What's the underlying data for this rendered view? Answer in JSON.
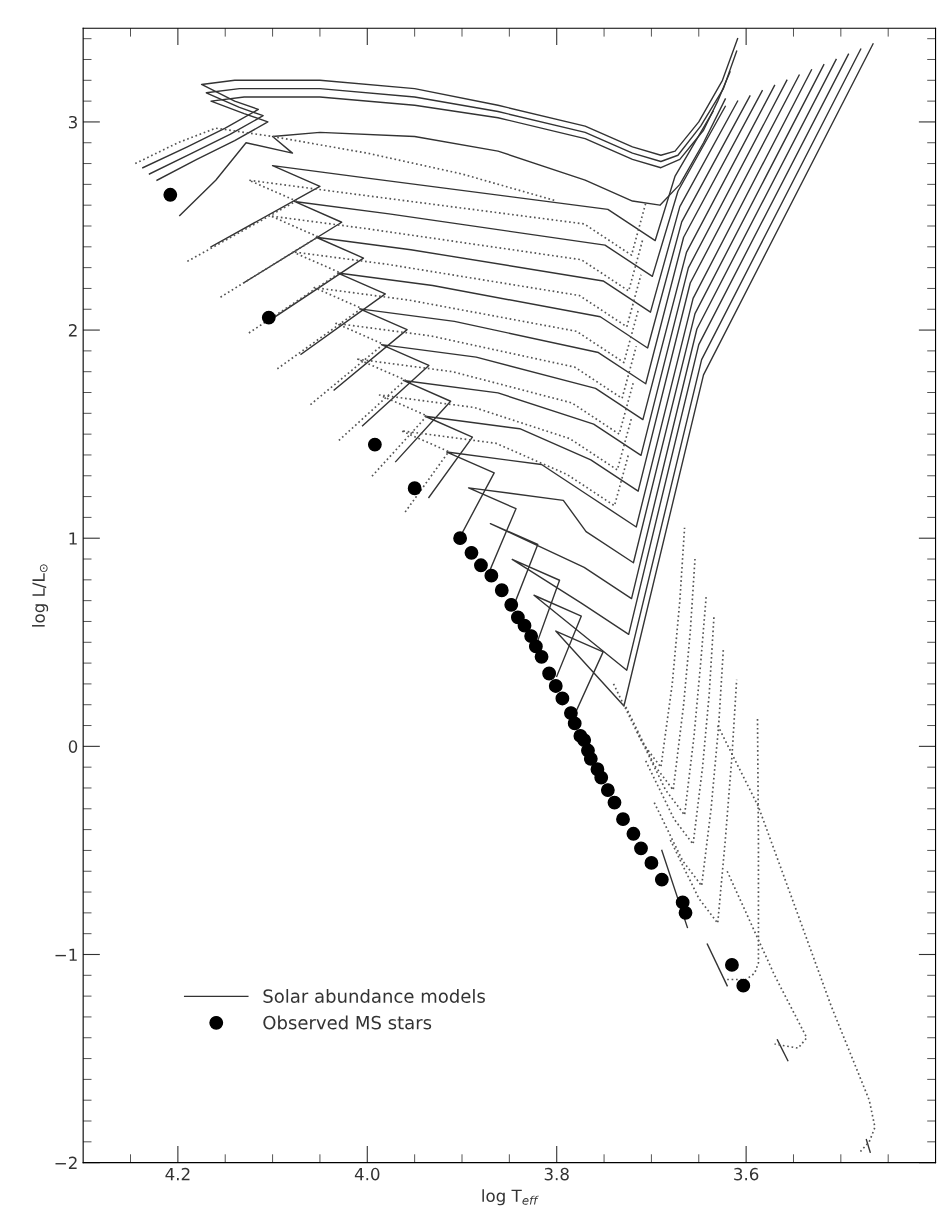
{
  "chart_data": {
    "type": "line",
    "xlabel": "log T$_{eff}$",
    "ylabel": "log L/L$_{⊙}$",
    "xlim": [
      4.3,
      3.4
    ],
    "ylim": [
      -2,
      3.45
    ],
    "xticks": [
      {
        "value": 4.25,
        "label": null
      },
      4.2,
      {
        "value": 4.15,
        "label": null
      },
      {
        "value": 4.1,
        "label": null
      },
      {
        "value": 4.05,
        "label": null
      },
      {
        "value": 4.0,
        "label": "4.0"
      },
      {
        "value": 3.95,
        "label": null
      },
      {
        "value": 3.9,
        "label": null
      },
      {
        "value": 3.85,
        "label": null
      },
      3.8,
      {
        "value": 3.75,
        "label": null
      },
      {
        "value": 3.7,
        "label": null
      },
      {
        "value": 3.65,
        "label": null
      },
      3.6,
      {
        "value": 3.55,
        "label": null
      },
      {
        "value": 3.5,
        "label": null
      },
      {
        "value": 3.45,
        "label": null
      }
    ],
    "yticks": [
      {
        "value": -2,
        "label": "−2"
      },
      {
        "value": -1.9,
        "label": null
      },
      {
        "value": -1.8,
        "label": null
      },
      {
        "value": -1.7,
        "label": null
      },
      {
        "value": -1.6,
        "label": null
      },
      {
        "value": -1.5,
        "label": null
      },
      {
        "value": -1.4,
        "label": null
      },
      {
        "value": -1.3,
        "label": null
      },
      {
        "value": -1.2,
        "label": null
      },
      {
        "value": -1.1,
        "label": null
      },
      {
        "value": -1,
        "label": "−1"
      },
      {
        "value": -0.9,
        "label": null
      },
      {
        "value": -0.8,
        "label": null
      },
      {
        "value": -0.7,
        "label": null
      },
      {
        "value": -0.6,
        "label": null
      },
      {
        "value": -0.5,
        "label": null
      },
      {
        "value": -0.4,
        "label": null
      },
      {
        "value": -0.3,
        "label": null
      },
      {
        "value": -0.2,
        "label": null
      },
      {
        "value": -0.1,
        "label": null
      },
      0,
      {
        "value": 0.1,
        "label": null
      },
      {
        "value": 0.2,
        "label": null
      },
      {
        "value": 0.3,
        "label": null
      },
      {
        "value": 0.4,
        "label": null
      },
      {
        "value": 0.5,
        "label": null
      },
      {
        "value": 0.6,
        "label": null
      },
      {
        "value": 0.7,
        "label": null
      },
      {
        "value": 0.8,
        "label": null
      },
      {
        "value": 0.9,
        "label": null
      },
      1,
      {
        "value": 1.1,
        "label": null
      },
      {
        "value": 1.2,
        "label": null
      },
      {
        "value": 1.3,
        "label": null
      },
      {
        "value": 1.4,
        "label": null
      },
      {
        "value": 1.5,
        "label": null
      },
      {
        "value": 1.6,
        "label": null
      },
      {
        "value": 1.7,
        "label": null
      },
      {
        "value": 1.8,
        "label": null
      },
      {
        "value": 1.9,
        "label": null
      },
      2,
      {
        "value": 2.1,
        "label": null
      },
      {
        "value": 2.2,
        "label": null
      },
      {
        "value": 2.3,
        "label": null
      },
      {
        "value": 2.4,
        "label": null
      },
      {
        "value": 2.5,
        "label": null
      },
      {
        "value": 2.6,
        "label": null
      },
      {
        "value": 2.7,
        "label": null
      },
      {
        "value": 2.8,
        "label": null
      },
      {
        "value": 2.9,
        "label": null
      },
      3,
      {
        "value": 3.1,
        "label": null
      },
      {
        "value": 3.2,
        "label": null
      },
      {
        "value": 3.3,
        "label": null
      },
      {
        "value": 3.4,
        "label": null
      }
    ],
    "grid": false,
    "legend": "bottom left",
    "series": [
      {
        "type": "line",
        "name": "Solar abundance models",
        "color": "#333333",
        "line_style": "solid",
        "x": [
          4.237,
          4.19,
          4.15,
          4.115,
          4.14,
          4.175,
          4.14,
          4.05,
          3.95,
          3.862,
          3.77,
          3.72,
          3.69,
          3.675,
          3.65,
          3.625,
          3.609
        ],
        "values": [
          2.78,
          2.88,
          2.97,
          3.06,
          3.1,
          3.18,
          3.2,
          3.2,
          3.16,
          3.08,
          2.98,
          2.88,
          2.84,
          2.86,
          3.0,
          3.2,
          3.4
        ]
      },
      {
        "type": "line",
        "color": "#333333",
        "line_style": "solid",
        "x": [
          4.23,
          4.185,
          4.145,
          4.11,
          4.135,
          4.17,
          4.135,
          4.05,
          3.95,
          3.862,
          3.77,
          3.72,
          3.69,
          3.672,
          3.648,
          3.624,
          3.61
        ],
        "values": [
          2.75,
          2.85,
          2.94,
          3.03,
          3.07,
          3.14,
          3.16,
          3.16,
          3.12,
          3.05,
          2.95,
          2.85,
          2.81,
          2.84,
          2.98,
          3.16,
          3.34
        ]
      },
      {
        "type": "line",
        "color": "#333333",
        "line_style": "solid",
        "x": [
          4.222,
          4.18,
          4.14,
          4.105,
          4.13,
          4.165,
          4.13,
          4.05,
          3.95,
          3.862,
          3.77,
          3.72,
          3.69,
          3.67,
          3.645,
          3.63,
          3.617
        ],
        "values": [
          2.72,
          2.82,
          2.91,
          3.0,
          3.04,
          3.1,
          3.12,
          3.12,
          3.08,
          3.02,
          2.92,
          2.82,
          2.78,
          2.82,
          2.96,
          3.1,
          3.24
        ]
      },
      {
        "type": "line",
        "color": "#333333",
        "line_style": "solid",
        "x": [
          4.198,
          4.16,
          4.128,
          4.079,
          4.1,
          4.05,
          3.95,
          3.862,
          3.77,
          3.72,
          3.691,
          3.67,
          3.645,
          3.622
        ],
        "values": [
          2.55,
          2.72,
          2.9,
          2.85,
          2.93,
          2.95,
          2.93,
          2.86,
          2.72,
          2.62,
          2.6,
          2.7,
          2.9,
          3.11
        ]
      },
      {
        "type": "line",
        "color": "#333333",
        "line_style": "solid",
        "x": [
          4.165,
          4.05,
          4.1,
          4.0,
          3.746,
          3.696,
          3.675,
          3.635
        ],
        "values": [
          2.4,
          2.69,
          2.79,
          2.73,
          2.58,
          2.43,
          2.74,
          3.05
        ]
      },
      {
        "type": "line",
        "color": "#333333",
        "line_style": "solid",
        "x": [
          4.13,
          4.027,
          4.077,
          3.977,
          3.749,
          3.699,
          3.672,
          3.622
        ],
        "values": [
          2.228,
          2.518,
          2.618,
          2.558,
          2.408,
          2.258,
          2.667,
          3.075
        ]
      },
      {
        "type": "line",
        "color": "#333333",
        "line_style": "solid",
        "x": [
          4.1,
          4.004,
          4.054,
          3.954,
          3.751,
          3.701,
          3.67,
          3.609
        ],
        "values": [
          2.056,
          2.346,
          2.446,
          2.386,
          2.236,
          2.086,
          2.593,
          3.1
        ]
      },
      {
        "type": "line",
        "color": "#333333",
        "line_style": "solid",
        "x": [
          4.07,
          3.981,
          4.031,
          3.931,
          3.754,
          3.704,
          3.668,
          3.596
        ],
        "values": [
          1.884,
          2.174,
          2.274,
          2.214,
          2.064,
          1.914,
          2.52,
          3.125
        ]
      },
      {
        "type": "line",
        "color": "#333333",
        "line_style": "solid",
        "x": [
          4.035,
          3.958,
          4.008,
          3.908,
          3.756,
          3.706,
          3.666,
          3.583
        ],
        "values": [
          1.712,
          2.002,
          2.102,
          2.042,
          1.892,
          1.742,
          2.446,
          3.15
        ]
      },
      {
        "type": "line",
        "color": "#333333",
        "line_style": "solid",
        "x": [
          4.005,
          3.935,
          3.985,
          3.885,
          3.759,
          3.709,
          3.663,
          3.57
        ],
        "values": [
          1.54,
          1.83,
          1.93,
          1.87,
          1.72,
          1.57,
          2.373,
          3.175
        ]
      },
      {
        "type": "line",
        "color": "#333333",
        "line_style": "solid",
        "x": [
          3.97,
          3.912,
          3.962,
          3.862,
          3.761,
          3.711,
          3.661,
          3.557
        ],
        "values": [
          1.368,
          1.658,
          1.758,
          1.698,
          1.548,
          1.398,
          2.299,
          3.2
        ]
      },
      {
        "type": "line",
        "color": "#333333",
        "line_style": "solid",
        "x": [
          3.935,
          3.889,
          3.939,
          3.839,
          3.764,
          3.714,
          3.659,
          3.544
        ],
        "values": [
          1.196,
          1.486,
          1.586,
          1.526,
          1.376,
          1.226,
          2.226,
          3.225
        ]
      },
      {
        "type": "line",
        "color": "#333333",
        "line_style": "solid",
        "x": [
          3.9,
          3.866,
          3.916,
          3.816,
          3.766,
          3.716,
          3.656,
          3.531
        ],
        "values": [
          1.024,
          1.314,
          1.414,
          1.354,
          1.204,
          1.054,
          2.152,
          3.25
        ]
      },
      {
        "type": "line",
        "color": "#333333",
        "line_style": "solid",
        "x": [
          3.87,
          3.843,
          3.893,
          3.793,
          3.769,
          3.719,
          3.654,
          3.518
        ],
        "values": [
          0.852,
          1.142,
          1.242,
          1.182,
          1.032,
          0.882,
          2.079,
          3.275
        ]
      },
      {
        "type": "line",
        "color": "#333333",
        "line_style": "solid",
        "x": [
          3.845,
          3.82,
          3.87,
          3.771,
          3.721,
          3.652,
          3.505
        ],
        "values": [
          0.68,
          0.97,
          1.07,
          0.86,
          0.71,
          2.005,
          3.3
        ]
      },
      {
        "type": "line",
        "color": "#333333",
        "line_style": "solid",
        "x": [
          3.82,
          3.797,
          3.847,
          3.774,
          3.724,
          3.65,
          3.492
        ],
        "values": [
          0.508,
          0.798,
          0.898,
          0.688,
          0.538,
          1.93,
          3.325
        ]
      },
      {
        "type": "line",
        "color": "#333333",
        "line_style": "solid",
        "x": [
          3.8,
          3.774,
          3.824,
          3.726,
          3.647,
          3.479
        ],
        "values": [
          0.336,
          0.626,
          0.726,
          0.366,
          1.858,
          3.35
        ]
      },
      {
        "type": "line",
        "color": "#333333",
        "line_style": "solid",
        "x": [
          3.78,
          3.751,
          3.801,
          3.729,
          3.645,
          3.466
        ],
        "values": [
          0.164,
          0.454,
          0.554,
          0.194,
          1.785,
          3.375
        ]
      },
      {
        "type": "line",
        "color": "#333333",
        "line_style": "solid",
        "x": [
          3.689,
          3.662
        ],
        "values": [
          -0.5,
          -0.87
        ]
      },
      {
        "type": "line",
        "color": "#333333",
        "line_style": "solid",
        "x": [
          3.641,
          3.62
        ],
        "values": [
          -0.95,
          -1.15
        ]
      },
      {
        "type": "line",
        "color": "#333333",
        "line_style": "solid",
        "x": [
          3.567,
          3.556
        ],
        "values": [
          -1.41,
          -1.51
        ]
      },
      {
        "type": "line",
        "color": "#333333",
        "line_style": "solid",
        "x": [
          3.473,
          3.469
        ],
        "values": [
          -1.89,
          -1.95
        ]
      },
      {
        "type": "line",
        "color": "#555555",
        "line_style": "dotted",
        "x": [
          4.245,
          4.2,
          4.16,
          4.1,
          4.0,
          3.9,
          3.8
        ],
        "values": [
          2.8,
          2.9,
          2.97,
          2.93,
          2.85,
          2.75,
          2.62
        ]
      },
      {
        "type": "line",
        "color": "#555555",
        "line_style": "dotted",
        "x": [
          4.19,
          4.075,
          4.125,
          4.025,
          3.771,
          3.721,
          3.706
        ],
        "values": [
          2.33,
          2.62,
          2.72,
          2.66,
          2.51,
          2.36,
          2.61
        ]
      },
      {
        "type": "line",
        "color": "#555555",
        "line_style": "dotted",
        "x": [
          4.155,
          4.052,
          4.102,
          4.002,
          3.774,
          3.724,
          3.709
        ],
        "values": [
          2.158,
          2.448,
          2.548,
          2.488,
          2.338,
          2.188,
          2.438
        ]
      },
      {
        "type": "line",
        "color": "#555555",
        "line_style": "dotted",
        "x": [
          4.125,
          4.029,
          4.079,
          3.979,
          3.776,
          3.726,
          3.711
        ],
        "values": [
          1.986,
          2.276,
          2.376,
          2.316,
          2.166,
          2.016,
          2.266
        ]
      },
      {
        "type": "line",
        "color": "#555555",
        "line_style": "dotted",
        "x": [
          4.095,
          4.006,
          4.056,
          3.956,
          3.779,
          3.729,
          3.714
        ],
        "values": [
          1.814,
          2.104,
          2.204,
          2.144,
          1.994,
          1.844,
          2.094
        ]
      },
      {
        "type": "line",
        "color": "#555555",
        "line_style": "dotted",
        "x": [
          4.06,
          3.983,
          4.033,
          3.933,
          3.781,
          3.731,
          3.716
        ],
        "values": [
          1.642,
          1.932,
          2.032,
          1.972,
          1.822,
          1.672,
          1.922
        ]
      },
      {
        "type": "line",
        "color": "#555555",
        "line_style": "dotted",
        "x": [
          4.03,
          3.96,
          4.01,
          3.91,
          3.784,
          3.734,
          3.719
        ],
        "values": [
          1.47,
          1.76,
          1.86,
          1.8,
          1.65,
          1.5,
          1.75
        ]
      },
      {
        "type": "line",
        "color": "#555555",
        "line_style": "dotted",
        "x": [
          3.995,
          3.937,
          3.987,
          3.887,
          3.786,
          3.736,
          3.721
        ],
        "values": [
          1.298,
          1.588,
          1.688,
          1.628,
          1.478,
          1.328,
          1.578
        ]
      },
      {
        "type": "line",
        "color": "#555555",
        "line_style": "dotted",
        "x": [
          3.96,
          3.914,
          3.964,
          3.864,
          3.789,
          3.739,
          3.724
        ],
        "values": [
          1.126,
          1.416,
          1.516,
          1.456,
          1.306,
          1.156,
          1.406
        ]
      },
      {
        "type": "line",
        "color": "#555555",
        "line_style": "dotted",
        "x": [
          3.74,
          3.71,
          3.69,
          3.678,
          3.67,
          3.665
        ],
        "values": [
          0.3,
          0.02,
          -0.1,
          0.3,
          0.7,
          1.05
        ]
      },
      {
        "type": "line",
        "color": "#555555",
        "line_style": "dotted",
        "x": [
          3.727,
          3.697,
          3.677,
          3.666,
          3.659,
          3.654
        ],
        "values": [
          0.19,
          -0.09,
          -0.21,
          0.2,
          0.55,
          0.9
        ]
      },
      {
        "type": "line",
        "color": "#555555",
        "line_style": "dotted",
        "x": [
          3.715,
          3.685,
          3.665,
          3.655,
          3.648,
          3.642
        ],
        "values": [
          0.07,
          -0.21,
          -0.33,
          0.05,
          0.4,
          0.73
        ]
      },
      {
        "type": "line",
        "color": "#555555",
        "line_style": "dotted",
        "x": [
          3.706,
          3.676,
          3.656,
          3.646,
          3.639,
          3.634
        ],
        "values": [
          -0.07,
          -0.35,
          -0.47,
          -0.1,
          0.25,
          0.62
        ]
      },
      {
        "type": "line",
        "color": "#555555",
        "line_style": "dotted",
        "x": [
          3.697,
          3.667,
          3.647,
          3.637,
          3.629,
          3.624
        ],
        "values": [
          -0.27,
          -0.55,
          -0.67,
          -0.3,
          0.1,
          0.47
        ]
      },
      {
        "type": "line",
        "color": "#555555",
        "line_style": "dotted",
        "x": [
          3.68,
          3.65,
          3.63,
          3.622,
          3.615,
          3.61
        ],
        "values": [
          -0.45,
          -0.73,
          -0.85,
          -0.45,
          -0.05,
          0.32
        ]
      },
      {
        "type": "line",
        "color": "#555555",
        "line_style": "dotted",
        "x": [
          3.62,
          3.6,
          3.591,
          3.587,
          3.587,
          3.588
        ],
        "values": [
          -1.12,
          -1.12,
          -1.09,
          -1.04,
          -0.45,
          0.14
        ]
      },
      {
        "type": "line",
        "color": "#555555",
        "line_style": "dotted",
        "x": [
          3.63,
          3.587,
          3.55,
          3.51,
          3.47,
          3.464,
          3.47,
          3.48
        ],
        "values": [
          0.1,
          -0.29,
          -0.75,
          -1.25,
          -1.7,
          -1.83,
          -1.9,
          -1.95
        ]
      },
      {
        "type": "line",
        "color": "#555555",
        "line_style": "dotted",
        "x": [
          3.62,
          3.57,
          3.536,
          3.545,
          3.57
        ],
        "values": [
          -0.6,
          -1.1,
          -1.4,
          -1.45,
          -1.43
        ]
      },
      {
        "type": "scatter",
        "name": "Observed MS stars",
        "color": "#000000",
        "marker": "circle",
        "x": [
          4.208,
          4.104,
          3.992,
          3.95,
          3.902,
          3.89,
          3.88,
          3.869,
          3.858,
          3.848,
          3.841,
          3.834,
          3.827,
          3.822,
          3.816,
          3.808,
          3.801,
          3.794,
          3.785,
          3.781,
          3.775,
          3.771,
          3.767,
          3.764,
          3.757,
          3.753,
          3.746,
          3.739,
          3.73,
          3.719,
          3.711,
          3.7,
          3.689,
          3.667,
          3.664,
          3.615,
          3.603
        ],
        "values": [
          2.65,
          2.06,
          1.45,
          1.24,
          1.0,
          0.93,
          0.87,
          0.82,
          0.75,
          0.68,
          0.62,
          0.58,
          0.53,
          0.48,
          0.43,
          0.35,
          0.29,
          0.23,
          0.16,
          0.11,
          0.05,
          0.03,
          -0.02,
          -0.06,
          -0.11,
          -0.15,
          -0.21,
          -0.27,
          -0.35,
          -0.42,
          -0.49,
          -0.56,
          -0.64,
          -0.75,
          -0.8,
          -1.05,
          -1.15
        ]
      }
    ]
  }
}
